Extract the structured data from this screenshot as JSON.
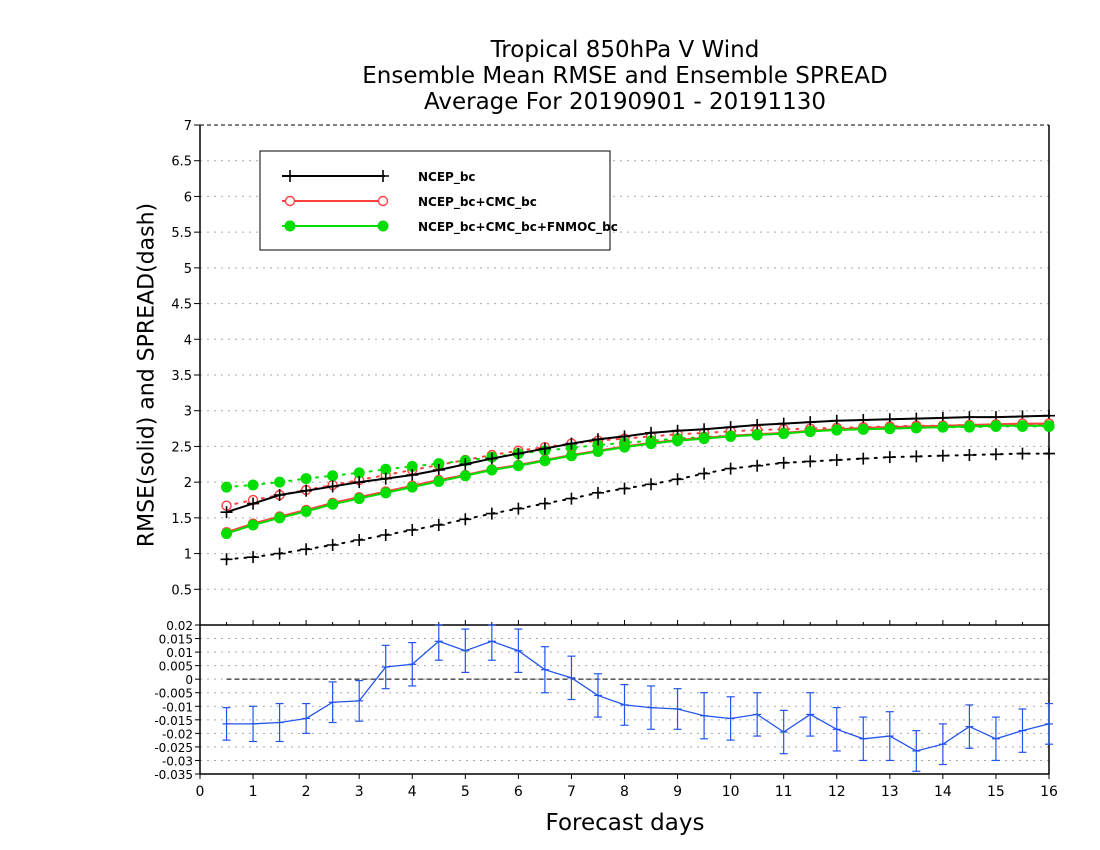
{
  "chart_data": [
    {
      "type": "line",
      "title": [
        "Tropical 850hPa V Wind",
        "Ensemble Mean RMSE and Ensemble SPREAD",
        "Average For 20190901 - 20191130"
      ],
      "xlabel": "Forecast days",
      "ylabel": "RMSE(solid)  and  SPREAD(dash)",
      "xlim": [
        0,
        16
      ],
      "ylim": [
        0,
        7
      ],
      "x_ticks": [
        "0",
        "1",
        "2",
        "3",
        "4",
        "5",
        "6",
        "7",
        "8",
        "9",
        "10",
        "11",
        "12",
        "13",
        "14",
        "15",
        "16"
      ],
      "y_ticks": [
        "0.5",
        "1",
        "1.5",
        "2",
        "2.5",
        "3",
        "3.5",
        "4",
        "4.5",
        "5",
        "5.5",
        "6",
        "6.5",
        "7"
      ],
      "grid": true,
      "legend_position": "top-left",
      "x": [
        0.5,
        1,
        1.5,
        2,
        2.5,
        3,
        3.5,
        4,
        4.5,
        5,
        5.5,
        6,
        6.5,
        7,
        7.5,
        8,
        8.5,
        9,
        9.5,
        10,
        10.5,
        11,
        11.5,
        12,
        12.5,
        13,
        13.5,
        14,
        14.5,
        15,
        15.5,
        16
      ],
      "series": [
        {
          "name": "NCEP_bc",
          "measure": "RMSE",
          "style": "solid",
          "marker": "plus",
          "color": "#000000",
          "values": [
            1.58,
            1.7,
            1.82,
            1.88,
            1.94,
            2.0,
            2.05,
            2.1,
            2.17,
            2.25,
            2.33,
            2.4,
            2.47,
            2.54,
            2.6,
            2.64,
            2.69,
            2.72,
            2.74,
            2.77,
            2.8,
            2.82,
            2.84,
            2.86,
            2.87,
            2.88,
            2.89,
            2.9,
            2.91,
            2.91,
            2.92,
            2.93
          ]
        },
        {
          "name": "NCEP_bc+CMC_bc",
          "measure": "RMSE",
          "style": "solid",
          "marker": "open-circle",
          "color": "#ff4040",
          "values": [
            1.3,
            1.42,
            1.52,
            1.61,
            1.71,
            1.79,
            1.87,
            1.95,
            2.03,
            2.1,
            2.18,
            2.24,
            2.31,
            2.38,
            2.44,
            2.5,
            2.55,
            2.59,
            2.62,
            2.65,
            2.67,
            2.69,
            2.72,
            2.74,
            2.76,
            2.77,
            2.78,
            2.79,
            2.8,
            2.81,
            2.82,
            2.82
          ]
        },
        {
          "name": "NCEP_bc+CMC_bc+FNMOC_bc",
          "measure": "RMSE",
          "style": "solid",
          "marker": "filled-circle",
          "color": "#00dd00",
          "values": [
            1.28,
            1.4,
            1.5,
            1.59,
            1.69,
            1.77,
            1.85,
            1.93,
            2.01,
            2.09,
            2.17,
            2.23,
            2.3,
            2.37,
            2.43,
            2.49,
            2.54,
            2.58,
            2.61,
            2.64,
            2.66,
            2.68,
            2.71,
            2.73,
            2.74,
            2.75,
            2.76,
            2.77,
            2.78,
            2.79,
            2.79,
            2.79
          ]
        },
        {
          "name": "NCEP_bc",
          "measure": "SPREAD",
          "style": "dash",
          "marker": "plus",
          "color": "#000000",
          "values": [
            0.92,
            0.95,
            1.0,
            1.06,
            1.12,
            1.19,
            1.26,
            1.33,
            1.4,
            1.48,
            1.56,
            1.63,
            1.7,
            1.77,
            1.85,
            1.91,
            1.97,
            2.04,
            2.12,
            2.19,
            2.23,
            2.27,
            2.29,
            2.31,
            2.33,
            2.35,
            2.36,
            2.37,
            2.38,
            2.39,
            2.4,
            2.4
          ]
        },
        {
          "name": "NCEP_bc+CMC_bc",
          "measure": "SPREAD",
          "style": "dash",
          "marker": "open-circle",
          "color": "#ff4040",
          "values": [
            1.67,
            1.75,
            1.82,
            1.89,
            1.96,
            2.03,
            2.1,
            2.17,
            2.24,
            2.31,
            2.38,
            2.44,
            2.49,
            2.54,
            2.58,
            2.61,
            2.64,
            2.67,
            2.69,
            2.71,
            2.73,
            2.74,
            2.75,
            2.76,
            2.77,
            2.78,
            2.79,
            2.79,
            2.8,
            2.8,
            2.81,
            2.81
          ]
        },
        {
          "name": "NCEP_bc+CMC_bc+FNMOC_bc",
          "measure": "SPREAD",
          "style": "dash",
          "marker": "filled-circle",
          "color": "#00dd00",
          "values": [
            1.93,
            1.96,
            2.0,
            2.05,
            2.09,
            2.13,
            2.18,
            2.22,
            2.26,
            2.3,
            2.35,
            2.4,
            2.44,
            2.48,
            2.52,
            2.55,
            2.58,
            2.61,
            2.63,
            2.65,
            2.67,
            2.69,
            2.71,
            2.73,
            2.74,
            2.75,
            2.76,
            2.77,
            2.77,
            2.78,
            2.78,
            2.78
          ]
        }
      ]
    },
    {
      "type": "line",
      "xlim": [
        0,
        16
      ],
      "ylim": [
        -0.035,
        0.02
      ],
      "y_ticks": [
        "-0.035",
        "-0.03",
        "-0.025",
        "-0.02",
        "-0.015",
        "-0.01",
        "-0.005",
        "0",
        "0.005",
        "0.01",
        "0.015",
        "0.02"
      ],
      "grid": true,
      "color": "#2255ee",
      "x": [
        0.5,
        1,
        1.5,
        2,
        2.5,
        3,
        3.5,
        4,
        4.5,
        5,
        5.5,
        6,
        6.5,
        7,
        7.5,
        8,
        8.5,
        9,
        9.5,
        10,
        10.5,
        11,
        11.5,
        12,
        12.5,
        13,
        13.5,
        14,
        14.5,
        15,
        15.5,
        16
      ],
      "values": [
        -0.0165,
        -0.0165,
        -0.016,
        -0.0145,
        -0.0085,
        -0.008,
        0.0045,
        0.0055,
        0.014,
        0.0105,
        0.014,
        0.0105,
        0.0035,
        0.0005,
        -0.006,
        -0.0095,
        -0.0105,
        -0.011,
        -0.0135,
        -0.0145,
        -0.013,
        -0.0195,
        -0.013,
        -0.0185,
        -0.022,
        -0.021,
        -0.0265,
        -0.024,
        -0.0175,
        -0.022,
        -0.019,
        -0.0165
      ],
      "error_upper": [
        -0.0105,
        -0.01,
        -0.009,
        -0.009,
        -0.001,
        -0.0005,
        0.0125,
        0.0135,
        0.021,
        0.0185,
        0.021,
        0.0185,
        0.012,
        0.0085,
        0.002,
        -0.002,
        -0.0025,
        -0.0035,
        -0.005,
        -0.0065,
        -0.005,
        -0.0115,
        -0.005,
        -0.0105,
        -0.014,
        -0.012,
        -0.019,
        -0.0165,
        -0.0095,
        -0.014,
        -0.011,
        -0.009
      ],
      "error_lower": [
        -0.0225,
        -0.023,
        -0.023,
        -0.02,
        -0.016,
        -0.0155,
        -0.0035,
        -0.0025,
        0.007,
        0.0025,
        0.007,
        0.0025,
        -0.005,
        -0.0075,
        -0.014,
        -0.017,
        -0.0185,
        -0.0185,
        -0.022,
        -0.0225,
        -0.021,
        -0.0275,
        -0.021,
        -0.0265,
        -0.03,
        -0.03,
        -0.034,
        -0.0315,
        -0.0255,
        -0.03,
        -0.027,
        -0.024
      ],
      "reference_line": 0
    }
  ]
}
